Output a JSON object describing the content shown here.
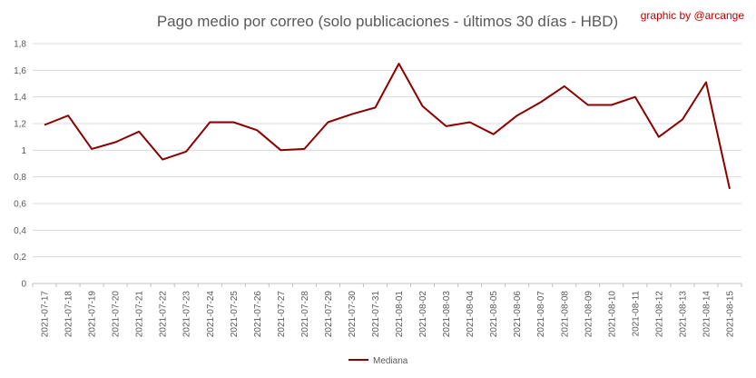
{
  "chart_data": {
    "type": "line",
    "title": "Pago medio por correo (solo publicaciones - últimos 30 días - HBD)",
    "credit": "graphic by @arcange",
    "xlabel": "",
    "ylabel": "",
    "ylim": [
      0,
      1.8
    ],
    "y_ticks": [
      "0",
      "0,2",
      "0,4",
      "0,6",
      "0,8",
      "1",
      "1,2",
      "1,4",
      "1,6",
      "1,8"
    ],
    "y_tick_values": [
      0,
      0.2,
      0.4,
      0.6,
      0.8,
      1.0,
      1.2,
      1.4,
      1.6,
      1.8
    ],
    "grid": true,
    "legend_position": "bottom",
    "categories": [
      "2021-07-17",
      "2021-07-18",
      "2021-07-19",
      "2021-07-20",
      "2021-07-21",
      "2021-07-22",
      "2021-07-23",
      "2021-07-24",
      "2021-07-25",
      "2021-07-26",
      "2021-07-27",
      "2021-07-28",
      "2021-07-29",
      "2021-07-30",
      "2021-07-31",
      "2021-08-01",
      "2021-08-02",
      "2021-08-03",
      "2021-08-04",
      "2021-08-05",
      "2021-08-06",
      "2021-08-07",
      "2021-08-08",
      "2021-08-09",
      "2021-08-10",
      "2021-08-11",
      "2021-08-12",
      "2021-08-13",
      "2021-08-14",
      "2021-08-15"
    ],
    "series": [
      {
        "name": "Mediana",
        "color": "#8b0000",
        "values": [
          1.19,
          1.26,
          1.01,
          1.06,
          1.14,
          0.93,
          0.99,
          1.21,
          1.21,
          1.15,
          1.0,
          1.01,
          1.21,
          1.27,
          1.32,
          1.65,
          1.33,
          1.18,
          1.21,
          1.12,
          1.26,
          1.36,
          1.48,
          1.34,
          1.34,
          1.4,
          1.1,
          1.23,
          1.51,
          0.71
        ]
      }
    ]
  }
}
